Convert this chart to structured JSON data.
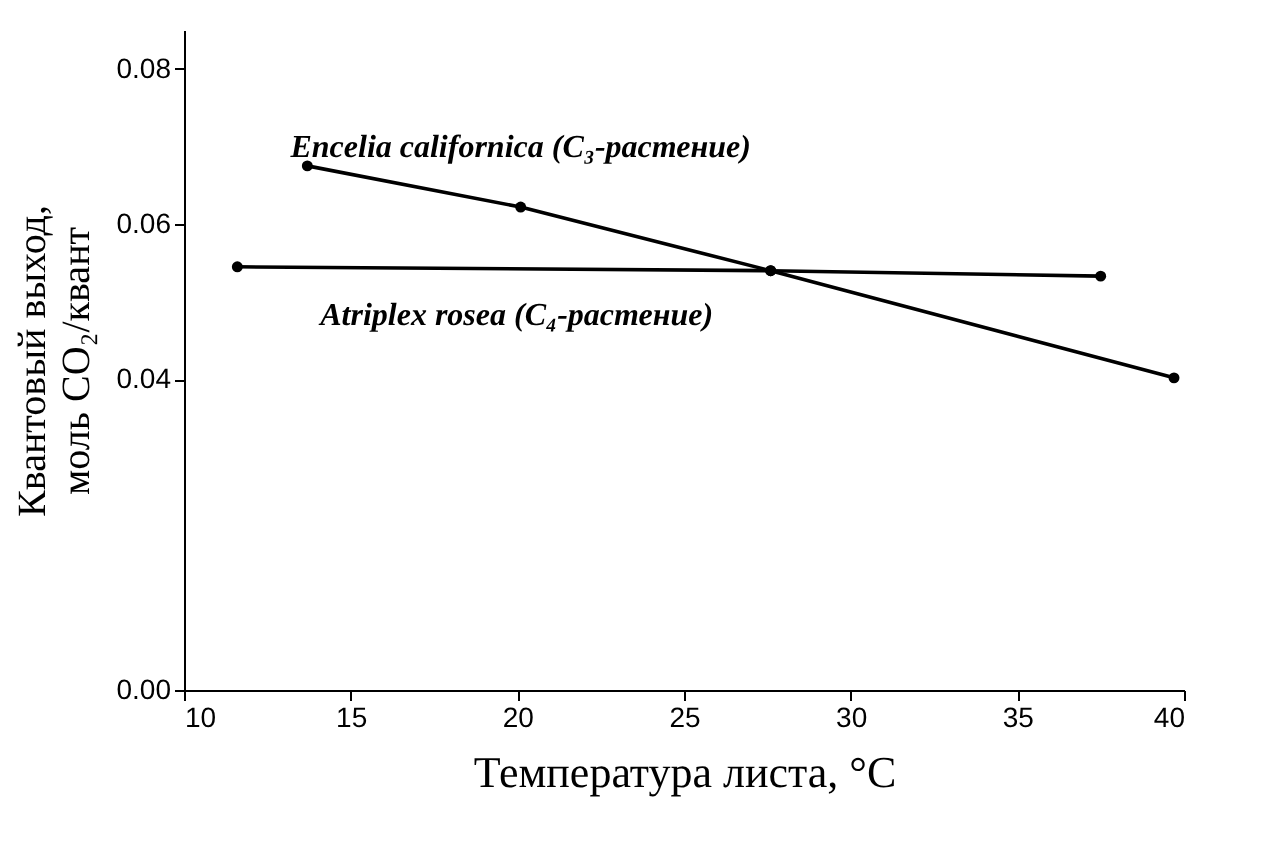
{
  "chart_data": {
    "type": "line",
    "xlabel": "Температура листа, °C",
    "ylabel": [
      "Квантовый выход,",
      "моль CO₂/квант"
    ],
    "xlim": [
      10,
      40
    ],
    "xticks": [
      10,
      15,
      20,
      25,
      30,
      35,
      40
    ],
    "ylim": [
      0,
      0.085
    ],
    "yticks": [
      {
        "value": 0,
        "label": "0.00"
      },
      0.04,
      0.06,
      0.08
    ],
    "grid": false,
    "marker": "circle",
    "line_style": "solid",
    "series": [
      {
        "name": "Encelia californica (C₃-растение)",
        "color": "#000000",
        "x": [
          13.7,
          20.1,
          27.6,
          39.7
        ],
        "values": [
          0.0675,
          0.0622,
          0.054,
          0.0402
        ]
      },
      {
        "name": "Atriplex rosea (C₄-растение)",
        "color": "#000000",
        "x": [
          11.6,
          27.6,
          37.5
        ],
        "values": [
          0.0545,
          0.054,
          0.0533
        ]
      }
    ]
  }
}
